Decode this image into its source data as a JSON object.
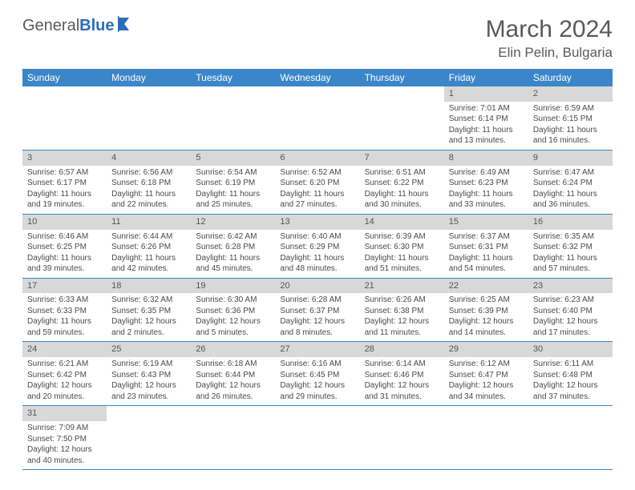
{
  "logo": {
    "word1": "General",
    "word2": "Blue"
  },
  "title": "March 2024",
  "location": "Elin Pelin, Bulgaria",
  "colors": {
    "header_bg": "#3b86c9",
    "header_text": "#ffffff",
    "daynum_bg": "#d8d8d8",
    "border": "#3b86c9",
    "text": "#4a4a4a",
    "logo_gray": "#5a5a5a",
    "logo_blue": "#2a6db8",
    "page_bg": "#ffffff"
  },
  "weekdays": [
    "Sunday",
    "Monday",
    "Tuesday",
    "Wednesday",
    "Thursday",
    "Friday",
    "Saturday"
  ],
  "weeks": [
    [
      null,
      null,
      null,
      null,
      null,
      {
        "n": "1",
        "sunrise": "7:01 AM",
        "sunset": "6:14 PM",
        "dl1": "11 hours",
        "dl2": "and 13 minutes."
      },
      {
        "n": "2",
        "sunrise": "6:59 AM",
        "sunset": "6:15 PM",
        "dl1": "11 hours",
        "dl2": "and 16 minutes."
      }
    ],
    [
      {
        "n": "3",
        "sunrise": "6:57 AM",
        "sunset": "6:17 PM",
        "dl1": "11 hours",
        "dl2": "and 19 minutes."
      },
      {
        "n": "4",
        "sunrise": "6:56 AM",
        "sunset": "6:18 PM",
        "dl1": "11 hours",
        "dl2": "and 22 minutes."
      },
      {
        "n": "5",
        "sunrise": "6:54 AM",
        "sunset": "6:19 PM",
        "dl1": "11 hours",
        "dl2": "and 25 minutes."
      },
      {
        "n": "6",
        "sunrise": "6:52 AM",
        "sunset": "6:20 PM",
        "dl1": "11 hours",
        "dl2": "and 27 minutes."
      },
      {
        "n": "7",
        "sunrise": "6:51 AM",
        "sunset": "6:22 PM",
        "dl1": "11 hours",
        "dl2": "and 30 minutes."
      },
      {
        "n": "8",
        "sunrise": "6:49 AM",
        "sunset": "6:23 PM",
        "dl1": "11 hours",
        "dl2": "and 33 minutes."
      },
      {
        "n": "9",
        "sunrise": "6:47 AM",
        "sunset": "6:24 PM",
        "dl1": "11 hours",
        "dl2": "and 36 minutes."
      }
    ],
    [
      {
        "n": "10",
        "sunrise": "6:46 AM",
        "sunset": "6:25 PM",
        "dl1": "11 hours",
        "dl2": "and 39 minutes."
      },
      {
        "n": "11",
        "sunrise": "6:44 AM",
        "sunset": "6:26 PM",
        "dl1": "11 hours",
        "dl2": "and 42 minutes."
      },
      {
        "n": "12",
        "sunrise": "6:42 AM",
        "sunset": "6:28 PM",
        "dl1": "11 hours",
        "dl2": "and 45 minutes."
      },
      {
        "n": "13",
        "sunrise": "6:40 AM",
        "sunset": "6:29 PM",
        "dl1": "11 hours",
        "dl2": "and 48 minutes."
      },
      {
        "n": "14",
        "sunrise": "6:39 AM",
        "sunset": "6:30 PM",
        "dl1": "11 hours",
        "dl2": "and 51 minutes."
      },
      {
        "n": "15",
        "sunrise": "6:37 AM",
        "sunset": "6:31 PM",
        "dl1": "11 hours",
        "dl2": "and 54 minutes."
      },
      {
        "n": "16",
        "sunrise": "6:35 AM",
        "sunset": "6:32 PM",
        "dl1": "11 hours",
        "dl2": "and 57 minutes."
      }
    ],
    [
      {
        "n": "17",
        "sunrise": "6:33 AM",
        "sunset": "6:33 PM",
        "dl1": "11 hours",
        "dl2": "and 59 minutes."
      },
      {
        "n": "18",
        "sunrise": "6:32 AM",
        "sunset": "6:35 PM",
        "dl1": "12 hours",
        "dl2": "and 2 minutes."
      },
      {
        "n": "19",
        "sunrise": "6:30 AM",
        "sunset": "6:36 PM",
        "dl1": "12 hours",
        "dl2": "and 5 minutes."
      },
      {
        "n": "20",
        "sunrise": "6:28 AM",
        "sunset": "6:37 PM",
        "dl1": "12 hours",
        "dl2": "and 8 minutes."
      },
      {
        "n": "21",
        "sunrise": "6:26 AM",
        "sunset": "6:38 PM",
        "dl1": "12 hours",
        "dl2": "and 11 minutes."
      },
      {
        "n": "22",
        "sunrise": "6:25 AM",
        "sunset": "6:39 PM",
        "dl1": "12 hours",
        "dl2": "and 14 minutes."
      },
      {
        "n": "23",
        "sunrise": "6:23 AM",
        "sunset": "6:40 PM",
        "dl1": "12 hours",
        "dl2": "and 17 minutes."
      }
    ],
    [
      {
        "n": "24",
        "sunrise": "6:21 AM",
        "sunset": "6:42 PM",
        "dl1": "12 hours",
        "dl2": "and 20 minutes."
      },
      {
        "n": "25",
        "sunrise": "6:19 AM",
        "sunset": "6:43 PM",
        "dl1": "12 hours",
        "dl2": "and 23 minutes."
      },
      {
        "n": "26",
        "sunrise": "6:18 AM",
        "sunset": "6:44 PM",
        "dl1": "12 hours",
        "dl2": "and 26 minutes."
      },
      {
        "n": "27",
        "sunrise": "6:16 AM",
        "sunset": "6:45 PM",
        "dl1": "12 hours",
        "dl2": "and 29 minutes."
      },
      {
        "n": "28",
        "sunrise": "6:14 AM",
        "sunset": "6:46 PM",
        "dl1": "12 hours",
        "dl2": "and 31 minutes."
      },
      {
        "n": "29",
        "sunrise": "6:12 AM",
        "sunset": "6:47 PM",
        "dl1": "12 hours",
        "dl2": "and 34 minutes."
      },
      {
        "n": "30",
        "sunrise": "6:11 AM",
        "sunset": "6:48 PM",
        "dl1": "12 hours",
        "dl2": "and 37 minutes."
      }
    ],
    [
      {
        "n": "31",
        "sunrise": "7:09 AM",
        "sunset": "7:50 PM",
        "dl1": "12 hours",
        "dl2": "and 40 minutes."
      },
      null,
      null,
      null,
      null,
      null,
      null
    ]
  ],
  "labels": {
    "sunrise": "Sunrise: ",
    "sunset": "Sunset: ",
    "daylight": "Daylight: "
  }
}
